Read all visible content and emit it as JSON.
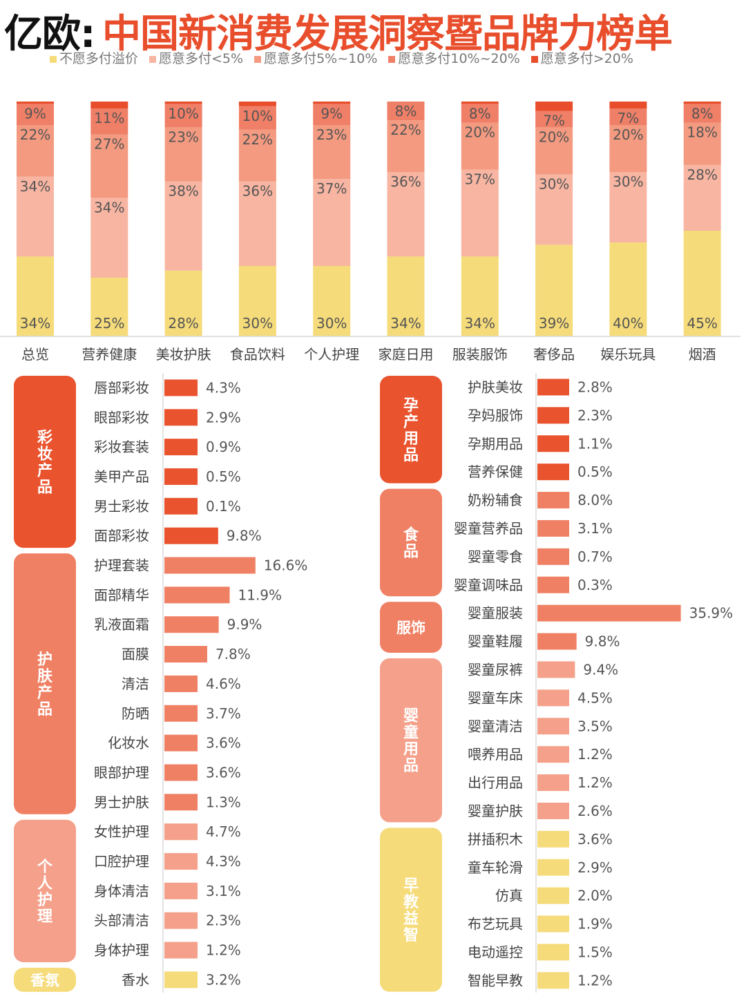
{
  "title": {
    "brand": "亿欧:",
    "main": "中国新消费发展洞察暨品牌力榜单"
  },
  "colors": {
    "seg": [
      "#f5db7a",
      "#f7b5a2",
      "#f39a80",
      "#f07f67",
      "#e84e2c"
    ],
    "group": {
      "彩妆产品": "#e9532e",
      "护肤产品": "#ef8064",
      "个人护理": "#f4a08a",
      "香氛": "#f5db7a",
      "孕产用品": "#e9532e",
      "食品": "#ef8064",
      "服饰": "#ef8064",
      "婴童用品": "#f4a08a",
      "早教益智": "#f5db7a"
    }
  },
  "chart_data": [
    {
      "type": "bar",
      "stacked": true,
      "orientation": "vertical",
      "ylim": [
        0,
        100
      ],
      "legend_position": "top",
      "categories": [
        "总览",
        "营养健康",
        "美妆护肤",
        "食品饮料",
        "个人护理",
        "家庭日用",
        "服装服饰",
        "奢侈品",
        "娱乐玩具",
        "烟酒"
      ],
      "series": [
        {
          "name": "不愿多付溢价",
          "values": [
            34,
            25,
            28,
            30,
            30,
            34,
            34,
            39,
            40,
            45
          ],
          "labels": [
            "34%",
            "25%",
            "28%",
            "30%",
            "30%",
            "34%",
            "34%",
            "39%",
            "40%",
            "45%"
          ]
        },
        {
          "name": "愿意多付<5%",
          "values": [
            34,
            34,
            38,
            36,
            37,
            36,
            37,
            30,
            30,
            28
          ],
          "labels": [
            "34%",
            "34%",
            "38%",
            "36%",
            "37%",
            "36%",
            "37%",
            "30%",
            "30%",
            "28%"
          ]
        },
        {
          "name": "愿意多付5%~10%",
          "values": [
            22,
            27,
            23,
            22,
            23,
            22,
            20,
            20,
            20,
            18
          ],
          "labels": [
            "22%",
            "27%",
            "23%",
            "22%",
            "23%",
            "22%",
            "20%",
            "20%",
            "20%",
            "18%"
          ]
        },
        {
          "name": "愿意多付10%~20%",
          "values": [
            9,
            11,
            10,
            10,
            9,
            8,
            8,
            7,
            7,
            8
          ],
          "labels": [
            "9%",
            "11%",
            "10%",
            "10%",
            "9%",
            "8%",
            "8%",
            "7%",
            "7%",
            "8%"
          ]
        },
        {
          "name": "愿意多付>20%",
          "values": [
            1,
            3,
            1,
            2,
            1,
            0,
            1,
            4,
            3,
            1
          ]
        }
      ]
    },
    {
      "type": "bar",
      "orientation": "horizontal",
      "xlim": [
        0,
        17
      ],
      "groups": [
        {
          "name": "彩妆产品",
          "items": [
            {
              "label": "唇部彩妆",
              "value": 4.3,
              "text": "4.3%"
            },
            {
              "label": "眼部彩妆",
              "value": 2.9,
              "text": "2.9%"
            },
            {
              "label": "彩妆套装",
              "value": 0.9,
              "text": "0.9%"
            },
            {
              "label": "美甲产品",
              "value": 0.5,
              "text": "0.5%"
            },
            {
              "label": "男士彩妆",
              "value": 0.1,
              "text": "0.1%"
            },
            {
              "label": "面部彩妆",
              "value": 9.8,
              "text": "9.8%"
            }
          ]
        },
        {
          "name": "护肤产品",
          "items": [
            {
              "label": "护理套装",
              "value": 16.6,
              "text": "16.6%"
            },
            {
              "label": "面部精华",
              "value": 11.9,
              "text": "11.9%"
            },
            {
              "label": "乳液面霜",
              "value": 9.9,
              "text": "9.9%"
            },
            {
              "label": "面膜",
              "value": 7.8,
              "text": "7.8%"
            },
            {
              "label": "清洁",
              "value": 4.6,
              "text": "4.6%"
            },
            {
              "label": "防晒",
              "value": 3.7,
              "text": "3.7%"
            },
            {
              "label": "化妆水",
              "value": 3.6,
              "text": "3.6%"
            },
            {
              "label": "眼部护理",
              "value": 3.6,
              "text": "3.6%"
            },
            {
              "label": "男士护肤",
              "value": 1.3,
              "text": "1.3%"
            }
          ]
        },
        {
          "name": "个人护理",
          "items": [
            {
              "label": "女性护理",
              "value": 4.7,
              "text": "4.7%"
            },
            {
              "label": "口腔护理",
              "value": 4.3,
              "text": "4.3%"
            },
            {
              "label": "身体清洁",
              "value": 3.1,
              "text": "3.1%"
            },
            {
              "label": "头部清洁",
              "value": 2.3,
              "text": "2.3%"
            },
            {
              "label": "身体护理",
              "value": 1.2,
              "text": "1.2%"
            }
          ]
        },
        {
          "name": "香氛",
          "items": [
            {
              "label": "香水",
              "value": 3.2,
              "text": "3.2%"
            }
          ]
        }
      ]
    },
    {
      "type": "bar",
      "orientation": "horizontal",
      "xlim": [
        0,
        37
      ],
      "groups": [
        {
          "name": "孕产用品",
          "items": [
            {
              "label": "护肤美妆",
              "value": 2.8,
              "text": "2.8%"
            },
            {
              "label": "孕妈服饰",
              "value": 2.3,
              "text": "2.3%"
            },
            {
              "label": "孕期用品",
              "value": 1.1,
              "text": "1.1%"
            },
            {
              "label": "营养保健",
              "value": 0.5,
              "text": "0.5%"
            }
          ]
        },
        {
          "name": "食品",
          "items": [
            {
              "label": "奶粉辅食",
              "value": 8.0,
              "text": "8.0%"
            },
            {
              "label": "婴童营养品",
              "value": 3.1,
              "text": "3.1%"
            },
            {
              "label": "婴童零食",
              "value": 0.7,
              "text": "0.7%"
            },
            {
              "label": "婴童调味品",
              "value": 0.3,
              "text": "0.3%"
            }
          ]
        },
        {
          "name": "服饰",
          "items": [
            {
              "label": "婴童服装",
              "value": 35.9,
              "text": "35.9%"
            },
            {
              "label": "婴童鞋履",
              "value": 9.8,
              "text": "9.8%"
            }
          ]
        },
        {
          "name": "婴童用品",
          "items": [
            {
              "label": "婴童尿裤",
              "value": 9.4,
              "text": "9.4%"
            },
            {
              "label": "婴童车床",
              "value": 4.5,
              "text": "4.5%"
            },
            {
              "label": "婴童清洁",
              "value": 3.5,
              "text": "3.5%"
            },
            {
              "label": "喂养用品",
              "value": 1.2,
              "text": "1.2%"
            },
            {
              "label": "出行用品",
              "value": 1.2,
              "text": "1.2%"
            },
            {
              "label": "婴童护肤",
              "value": 2.6,
              "text": "2.6%"
            }
          ]
        },
        {
          "name": "早教益智",
          "items": [
            {
              "label": "拼插积木",
              "value": 3.6,
              "text": "3.6%"
            },
            {
              "label": "童车轮滑",
              "value": 2.9,
              "text": "2.9%"
            },
            {
              "label": "仿真",
              "value": 2.0,
              "text": "2.0%"
            },
            {
              "label": "布艺玩具",
              "value": 1.9,
              "text": "1.9%"
            },
            {
              "label": "电动遥控",
              "value": 1.5,
              "text": "1.5%"
            },
            {
              "label": "智能早教",
              "value": 1.2,
              "text": "1.2%"
            }
          ]
        }
      ]
    }
  ]
}
